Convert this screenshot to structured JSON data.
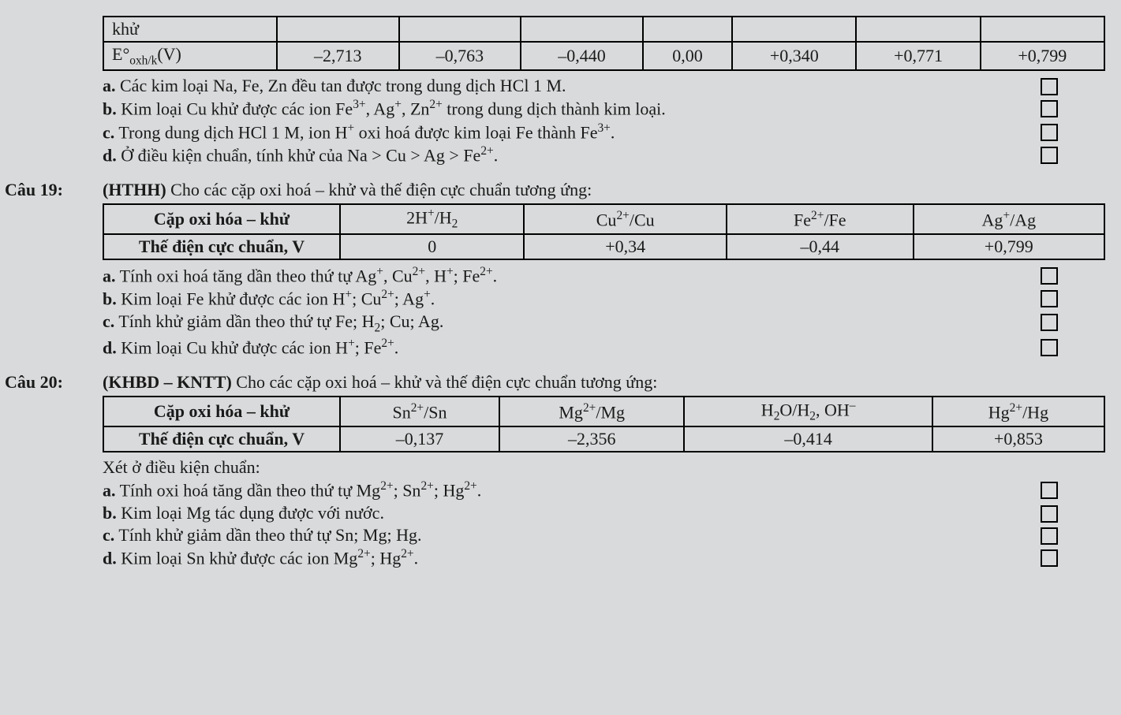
{
  "table1": {
    "row1_label": "khử",
    "row2_label": "E°<sub>oxh/k</sub>(V)",
    "values": [
      "–2,713",
      "–0,763",
      "–0,440",
      "0,00",
      "+0,340",
      "+0,771",
      "+0,799"
    ]
  },
  "block18": {
    "a": "<b>a.</b> Các kim loại Na, Fe, Zn đều tan được trong dung dịch HCl 1 M.",
    "b": "<b>b.</b> Kim loại Cu khử được các ion Fe<sup>3+</sup>, Ag<sup>+</sup>, Zn<sup>2+</sup> trong dung dịch thành kim loại.",
    "c": "<b>c.</b> Trong dung dịch HCl 1 M, ion H<sup>+</sup> oxi hoá được kim loại Fe thành Fe<sup>3+</sup>.",
    "d": "<b>d.</b> Ở điều kiện chuẩn, tính khử của Na > Cu > Ag > Fe<sup>2+</sup>."
  },
  "q19": {
    "label": "Câu 19:",
    "intro": "<b>(HTHH)</b> Cho các cặp oxi hoá – khử và thế điện cực chuẩn tương ứng:"
  },
  "table2": {
    "h0": "Cặp oxi hóa – khử",
    "h1": "2H<sup>+</sup>/H<sub>2</sub>",
    "h2": "Cu<sup>2+</sup>/Cu",
    "h3": "Fe<sup>2+</sup>/Fe",
    "h4": "Ag<sup>+</sup>/Ag",
    "r0": "Thế điện cực chuẩn, V",
    "r1": "0",
    "r2": "+0,34",
    "r3": "–0,44",
    "r4": "+0,799"
  },
  "block19": {
    "a": "<b>a.</b> Tính oxi hoá tăng dần theo thứ tự Ag<sup>+</sup>, Cu<sup>2+</sup>, H<sup>+</sup>; Fe<sup>2+</sup>.",
    "b": "<b>b.</b> Kim loại Fe khử được các ion H<sup>+</sup>; Cu<sup>2+</sup>; Ag<sup>+</sup>.",
    "c": "<b>c.</b> Tính khử giảm dần theo thứ tự Fe; H<sub>2</sub>; Cu; Ag.",
    "d": "<b>d.</b> Kim loại Cu khử được các ion H<sup>+</sup>; Fe<sup>2+</sup>."
  },
  "q20": {
    "label": "Câu 20:",
    "intro": "<b>(KHBD – KNTT)</b> Cho các cặp oxi hoá – khử và thế điện cực chuẩn tương ứng:"
  },
  "table3": {
    "h0": "Cặp oxi hóa – khử",
    "h1": "Sn<sup>2+</sup>/Sn",
    "h2": "Mg<sup>2+</sup>/Mg",
    "h3": "H<sub>2</sub>O/H<sub>2</sub>, OH<sup>–</sup>",
    "h4": "Hg<sup>2+</sup>/Hg",
    "r0": "Thế điện cực chuẩn, V",
    "r1": "–0,137",
    "r2": "–2,356",
    "r3": "–0,414",
    "r4": "+0,853"
  },
  "xet20": "Xét ở điều kiện chuẩn:",
  "block20": {
    "a": "<b>a.</b> Tính oxi hoá tăng dần theo thứ tự Mg<sup>2+</sup>; Sn<sup>2+</sup>; Hg<sup>2+</sup>.",
    "b": "<b>b.</b> Kim loại Mg tác dụng được với nước.",
    "c": "<b>c.</b> Tính khử giảm dần theo thứ tự Sn; Mg; Hg.",
    "d": "<b>d.</b> Kim loại Sn khử được các ion Mg<sup>2+</sup>; Hg<sup>2+</sup>."
  }
}
